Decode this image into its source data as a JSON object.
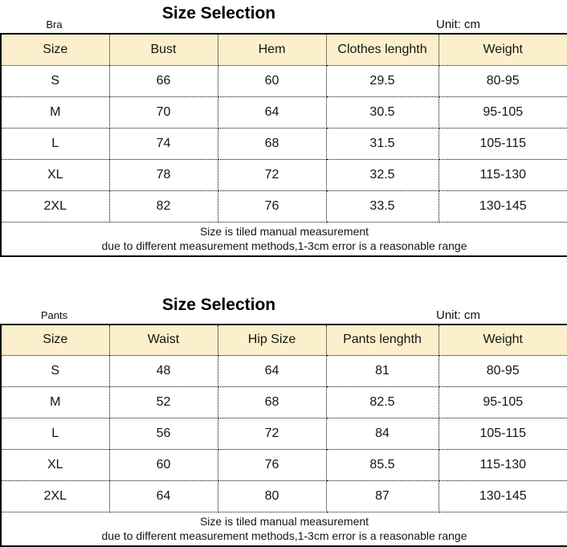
{
  "colors": {
    "header_bg": "#FBF0CB",
    "border": "#000000"
  },
  "tables": [
    {
      "product_label": "Bra",
      "title": "Size Selection",
      "unit_label": "Unit: cm",
      "columns": [
        "Size",
        "Bust",
        "Hem",
        "Clothes lenghth",
        "Weight"
      ],
      "rows": [
        [
          "S",
          "66",
          "60",
          "29.5",
          "80-95"
        ],
        [
          "M",
          "70",
          "64",
          "30.5",
          "95-105"
        ],
        [
          "L",
          "74",
          "68",
          "31.5",
          "105-115"
        ],
        [
          "XL",
          "78",
          "72",
          "32.5",
          "115-130"
        ],
        [
          "2XL",
          "82",
          "76",
          "33.5",
          "130-145"
        ]
      ],
      "footnotes": [
        "Size is tiled manual measurement",
        "due to different measurement methods,1-3cm error is a reasonable range"
      ]
    },
    {
      "product_label": "Pants",
      "title": "Size Selection",
      "unit_label": "Unit: cm",
      "columns": [
        "Size",
        "Waist",
        "Hip Size",
        "Pants lenghth",
        "Weight"
      ],
      "rows": [
        [
          "S",
          "48",
          "64",
          "81",
          "80-95"
        ],
        [
          "M",
          "52",
          "68",
          "82.5",
          "95-105"
        ],
        [
          "L",
          "56",
          "72",
          "84",
          "105-115"
        ],
        [
          "XL",
          "60",
          "76",
          "85.5",
          "115-130"
        ],
        [
          "2XL",
          "64",
          "80",
          "87",
          "130-145"
        ]
      ],
      "footnotes": [
        "Size is tiled manual measurement",
        "due to different measurement methods,1-3cm error is a reasonable range"
      ]
    }
  ]
}
